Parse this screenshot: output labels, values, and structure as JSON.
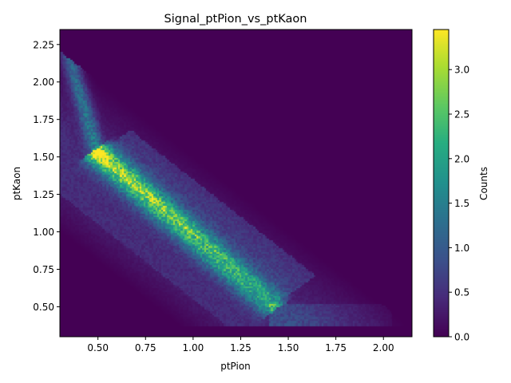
{
  "chart_data": {
    "type": "heatmap",
    "title": "Signal_ptPion_vs_ptKaon",
    "xlabel": "ptPion",
    "ylabel": "ptKaon",
    "xlim": [
      0.3,
      2.15
    ],
    "ylim": [
      0.3,
      2.35
    ],
    "x_ticks": [
      0.5,
      0.75,
      1.0,
      1.25,
      1.5,
      1.75,
      2.0
    ],
    "x_tick_labels": [
      "0.50",
      "0.75",
      "1.00",
      "1.25",
      "1.50",
      "1.75",
      "2.00"
    ],
    "y_ticks": [
      0.5,
      0.75,
      1.0,
      1.25,
      1.5,
      1.75,
      2.0,
      2.25
    ],
    "y_tick_labels": [
      "0.50",
      "0.75",
      "1.00",
      "1.25",
      "1.50",
      "1.75",
      "2.00",
      "2.25"
    ],
    "colorbar": {
      "label": "Counts",
      "range": [
        0.0,
        3.45
      ],
      "ticks": [
        0.0,
        0.5,
        1.0,
        1.5,
        2.0,
        2.5,
        3.0
      ],
      "tick_labels": [
        "0.0",
        "0.5",
        "1.0",
        "1.5",
        "2.0",
        "2.5",
        "3.0"
      ],
      "colormap": "viridis"
    },
    "grid": false,
    "features": {
      "ridge_line": {
        "from": [
          0.5,
          1.52
        ],
        "to": [
          1.42,
          0.5
        ],
        "peak_counts": 2.4
      },
      "hotspot": {
        "x": 0.5,
        "y": 1.53,
        "counts": 3.4
      },
      "upper_edge": {
        "from": [
          0.31,
          2.33
        ],
        "to": [
          2.07,
          0.42
        ]
      },
      "low_branch": {
        "from": [
          0.32,
          2.3
        ],
        "to": [
          0.5,
          1.52
        ]
      },
      "lower_band": {
        "from": [
          1.4,
          0.5
        ],
        "to": [
          2.05,
          0.42
        ]
      }
    }
  }
}
